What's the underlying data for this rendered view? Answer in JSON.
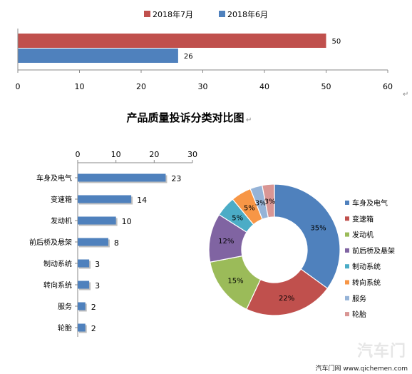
{
  "chart_data": [
    {
      "type": "bar",
      "orientation": "horizontal",
      "series": [
        {
          "name": "2018年7月",
          "color": "#C0504D",
          "values": [
            50
          ]
        },
        {
          "name": "2018年6月",
          "color": "#4F81BD",
          "values": [
            26
          ]
        }
      ],
      "xlim": [
        0,
        60
      ],
      "xticks": [
        "0",
        "10",
        "20",
        "30",
        "40",
        "50",
        "60"
      ],
      "legend": "top",
      "grid": false
    },
    {
      "type": "bar",
      "orientation": "horizontal",
      "title": "产品质量投诉分类对比图",
      "categories": [
        "车身及电气",
        "变速箱",
        "发动机",
        "前后桥及悬架",
        "制动系统",
        "转向系统",
        "服务",
        "轮胎"
      ],
      "values": [
        23,
        14,
        10,
        8,
        3,
        3,
        2,
        2
      ],
      "color": "#4F81BD",
      "xlim": [
        0,
        30
      ],
      "xticks": [
        "0",
        "10",
        "20",
        "30"
      ],
      "axis_position": "top",
      "grid": false
    },
    {
      "type": "pie",
      "style": "donut",
      "categories": [
        "车身及电气",
        "变速箱",
        "发动机",
        "前后桥及悬架",
        "制动系统",
        "转向系统",
        "服务",
        "轮胎"
      ],
      "values": [
        35,
        22,
        15,
        12,
        5,
        5,
        3,
        3
      ],
      "labels": [
        "35%",
        "22%",
        "15%",
        "12%",
        "5%",
        "5%",
        "3%",
        "3%"
      ],
      "colors": [
        "#4F81BD",
        "#C0504D",
        "#9BBB59",
        "#8064A2",
        "#4BACC6",
        "#F79646",
        "#95B3D7",
        "#D99694"
      ],
      "legend": "right"
    }
  ],
  "watermark": {
    "text": "汽车门网 www.qichemen.com",
    "logo": "汽车门"
  }
}
